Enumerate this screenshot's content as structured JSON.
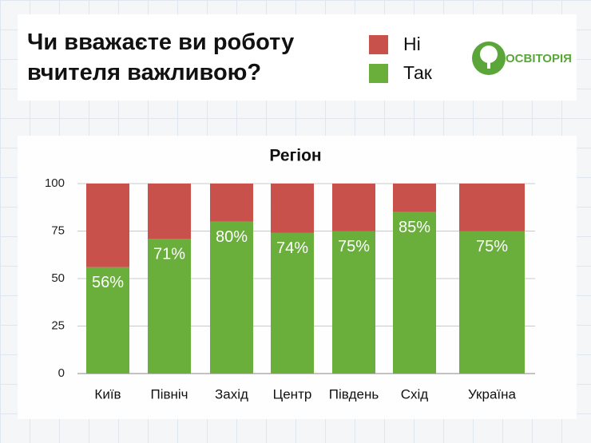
{
  "logo": "ОСВІТОРІЯ",
  "chart_data": {
    "type": "stacked_bar",
    "title": "Чи вважаєте ви роботу вчителя важливою?",
    "subtitle": "Регіон",
    "categories": [
      "Київ",
      "Північ",
      "Захід",
      "Центр",
      "Південь",
      "Схід",
      "Україна"
    ],
    "series": [
      {
        "name": "Так",
        "color": "#6aae3c",
        "values": [
          56,
          71,
          80,
          74,
          75,
          85,
          75
        ],
        "value_labels": [
          "56%",
          "71%",
          "80%",
          "74%",
          "75%",
          "85%",
          "75%"
        ]
      },
      {
        "name": "Ні",
        "color": "#c8524b",
        "values": [
          44,
          29,
          20,
          26,
          25,
          15,
          25
        ]
      }
    ],
    "ylim": [
      0,
      100
    ],
    "yticks": [
      0,
      25,
      50,
      75,
      100
    ],
    "grid": true
  }
}
